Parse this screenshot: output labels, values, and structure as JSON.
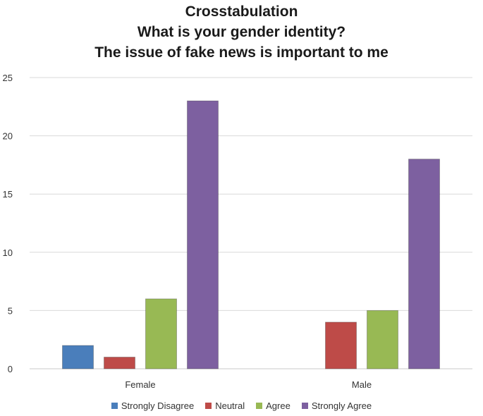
{
  "chart_data": {
    "type": "bar",
    "title": [
      "Crosstabulation",
      "What is your gender identity?",
      "The issue of fake news is important to me"
    ],
    "xlabel": "",
    "ylabel": "",
    "ylim": [
      0,
      25
    ],
    "yticks": [
      0,
      5,
      10,
      15,
      20,
      25
    ],
    "grid": true,
    "legend_position": "bottom",
    "categories": [
      "Female",
      "Male"
    ],
    "series": [
      {
        "name": "Strongly Disagree",
        "color": "#4a7ebb",
        "values": [
          2,
          0
        ]
      },
      {
        "name": "Neutral",
        "color": "#be4b48",
        "values": [
          1,
          4
        ]
      },
      {
        "name": "Agree",
        "color": "#98b954",
        "values": [
          6,
          5
        ]
      },
      {
        "name": "Strongly Agree",
        "color": "#7d60a0",
        "values": [
          23,
          18
        ]
      }
    ]
  }
}
